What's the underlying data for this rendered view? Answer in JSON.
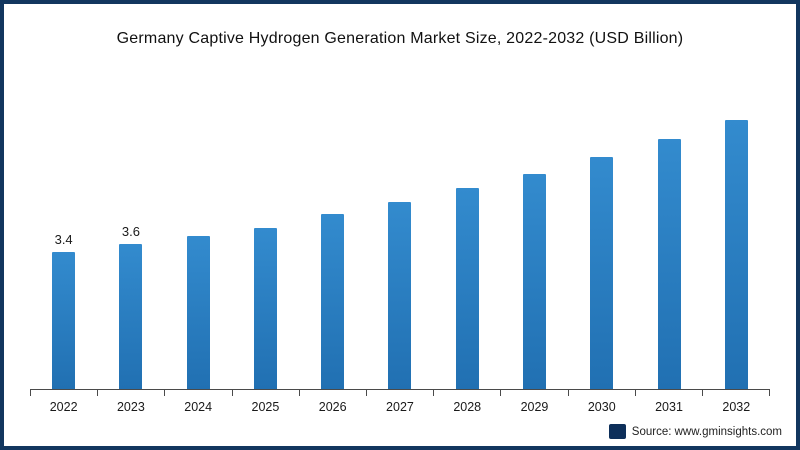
{
  "title": "Germany Captive Hydrogen Generation Market Size, 2022-2032 (USD Billion)",
  "source": {
    "label": "Source: www.gminsights.com",
    "logo": "gminsights-logo"
  },
  "frame": {
    "border_color": "#12365f",
    "background": "#ffffff"
  },
  "chart_data": {
    "type": "bar",
    "title": "Germany Captive Hydrogen Generation Market Size, 2022-2032 (USD Billion)",
    "categories": [
      "2022",
      "2023",
      "2024",
      "2025",
      "2026",
      "2027",
      "2028",
      "2029",
      "2030",
      "2031",
      "2032"
    ],
    "values": [
      3.4,
      3.6,
      3.8,
      4.0,
      4.35,
      4.65,
      5.0,
      5.35,
      5.75,
      6.2,
      6.75
    ],
    "data_labels": [
      "3.4",
      "3.6",
      "",
      "",
      "",
      "",
      "",
      "",
      "",
      "",
      ""
    ],
    "xlabel": "",
    "ylabel": "",
    "ylim": [
      0,
      7.2
    ],
    "grid": false,
    "legend": false,
    "bar_color_top": "#338bce",
    "bar_color_bottom": "#2170b2",
    "axis_color": "#4a4a4a"
  }
}
